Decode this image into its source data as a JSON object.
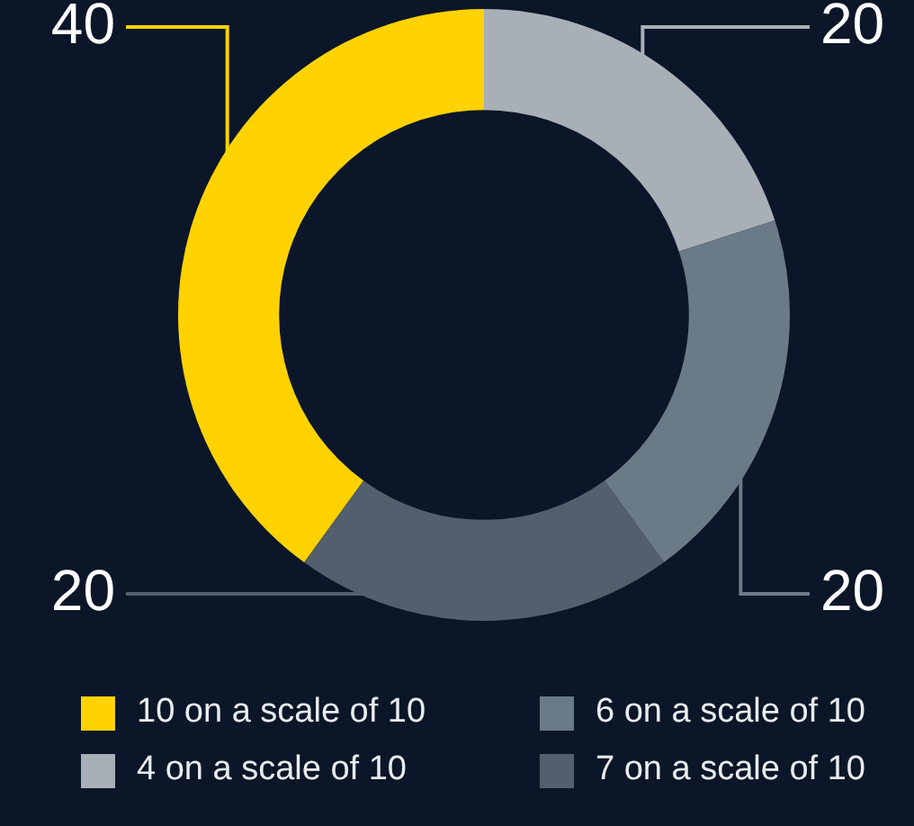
{
  "chart_data": {
    "type": "donut",
    "categories": [
      "10 on a scale of 10",
      "4 on a scale of 10",
      "6 on a scale of 10",
      "7 on a scale of 10"
    ],
    "values": [
      40,
      20,
      20,
      20
    ],
    "colors": [
      "#ffd200",
      "#a8afb7",
      "#6b7a87",
      "#535f6c"
    ],
    "data_labels": true,
    "legend": "bottom"
  }
}
